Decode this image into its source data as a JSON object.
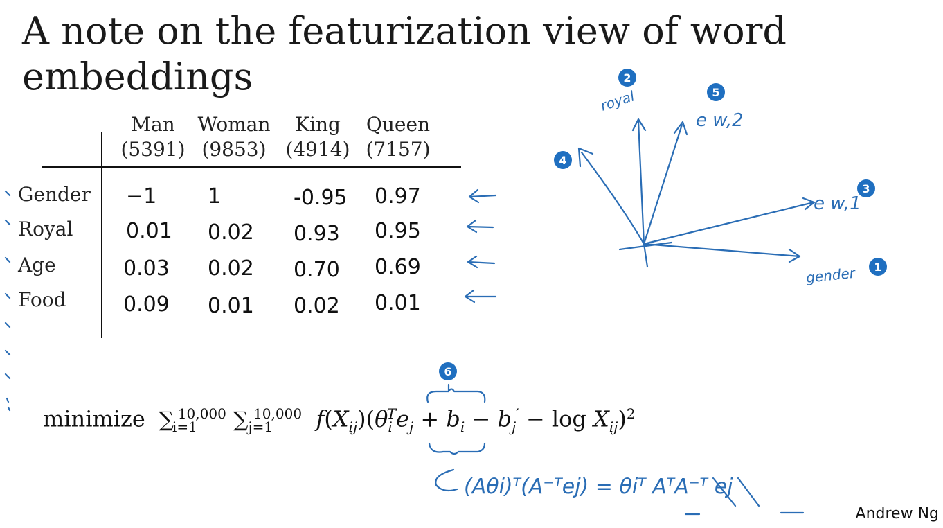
{
  "slide": {
    "title": "A note on the featurization view of word embeddings",
    "credit": "Andrew Ng"
  },
  "table": {
    "columns": [
      {
        "word": "Man",
        "index": "(5391)"
      },
      {
        "word": "Woman",
        "index": "(9853)"
      },
      {
        "word": "King",
        "index": "(4914)"
      },
      {
        "word": "Queen",
        "index": "(7157)"
      }
    ],
    "rows": [
      {
        "label": "Gender",
        "values": [
          "−1",
          "1",
          "-0.95",
          "0.97"
        ]
      },
      {
        "label": "Royal",
        "values": [
          "0.01",
          "0.02",
          "0.93",
          "0.95"
        ]
      },
      {
        "label": "Age",
        "values": [
          "0.03",
          "0.02",
          "0.70",
          "0.69"
        ]
      },
      {
        "label": "Food",
        "values": [
          "0.09",
          "0.01",
          "0.02",
          "0.01"
        ]
      }
    ]
  },
  "formula": {
    "minimize": "minimize",
    "sum1_sup": "10,000",
    "sum1_sub": "i=1",
    "sum2_sup": "10,000",
    "sum2_sub": "j=1"
  },
  "annotations": {
    "badges": [
      "1",
      "2",
      "3",
      "4",
      "5",
      "6"
    ],
    "axis_gender": "gender",
    "axis_royal": "royal",
    "vec_e_w1": "e w,1",
    "vec_e_w2": "e w,2",
    "handwritten_identity": "(Aθi)ᵀ(A⁻ᵀej) = θiᵀ AᵀA⁻ᵀ ej",
    "accent_color": "#1f6fc0",
    "ink_color": "#2a6db5"
  }
}
